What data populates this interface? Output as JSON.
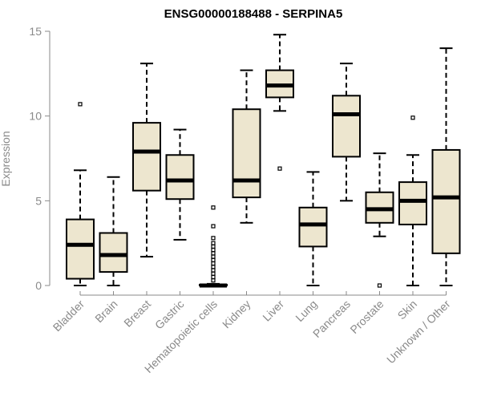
{
  "chart_data": {
    "type": "boxplot",
    "title": "ENSG00000188488 - SERPINA5",
    "xlabel": "",
    "ylabel": "Expression",
    "ylim": [
      0,
      15
    ],
    "yticks": [
      "0",
      "5",
      "10",
      "15"
    ],
    "box_fill": "#ede6cf",
    "box_stroke": "#000000",
    "axis_color": "#8a8a8a",
    "categories": [
      "Bladder",
      "Brain",
      "Breast",
      "Gastric",
      "Hematopoietic cells",
      "Kidney",
      "Liver",
      "Lung",
      "Pancreas",
      "Prostate",
      "Skin",
      "Unknown / Other"
    ],
    "boxes": [
      {
        "name": "Bladder",
        "min": 0.0,
        "q1": 0.4,
        "median": 2.4,
        "q3": 3.9,
        "max": 6.8,
        "outliers": [
          10.7
        ]
      },
      {
        "name": "Brain",
        "min": 0.0,
        "q1": 0.8,
        "median": 1.8,
        "q3": 3.1,
        "max": 6.4,
        "outliers": []
      },
      {
        "name": "Breast",
        "min": 1.7,
        "q1": 5.6,
        "median": 7.9,
        "q3": 9.6,
        "max": 13.1,
        "outliers": []
      },
      {
        "name": "Gastric",
        "min": 2.7,
        "q1": 5.1,
        "median": 6.2,
        "q3": 7.7,
        "max": 9.2,
        "outliers": []
      },
      {
        "name": "Hematopoietic cells",
        "min": 0.0,
        "q1": 0.0,
        "median": 0.0,
        "q3": 0.05,
        "max": 0.1,
        "outliers": [
          0.3,
          0.5,
          0.7,
          0.9,
          1.1,
          1.3,
          1.5,
          1.7,
          1.9,
          2.1,
          2.3,
          2.5,
          2.8,
          3.5,
          4.6
        ]
      },
      {
        "name": "Kidney",
        "min": 3.7,
        "q1": 5.2,
        "median": 6.2,
        "q3": 10.4,
        "max": 12.7,
        "outliers": []
      },
      {
        "name": "Liver",
        "min": 10.3,
        "q1": 11.1,
        "median": 11.8,
        "q3": 12.7,
        "max": 14.8,
        "outliers": [
          6.9
        ]
      },
      {
        "name": "Lung",
        "min": 0.0,
        "q1": 2.3,
        "median": 3.6,
        "q3": 4.6,
        "max": 6.7,
        "outliers": []
      },
      {
        "name": "Pancreas",
        "min": 5.0,
        "q1": 7.6,
        "median": 10.1,
        "q3": 11.2,
        "max": 13.1,
        "outliers": []
      },
      {
        "name": "Prostate",
        "min": 2.9,
        "q1": 3.7,
        "median": 4.5,
        "q3": 5.5,
        "max": 7.8,
        "outliers": [
          0.0
        ]
      },
      {
        "name": "Skin",
        "min": 0.0,
        "q1": 3.6,
        "median": 5.0,
        "q3": 6.1,
        "max": 7.7,
        "outliers": [
          9.9
        ]
      },
      {
        "name": "Unknown / Other",
        "min": 0.0,
        "q1": 1.9,
        "median": 5.2,
        "q3": 8.0,
        "max": 14.0,
        "outliers": []
      }
    ]
  }
}
